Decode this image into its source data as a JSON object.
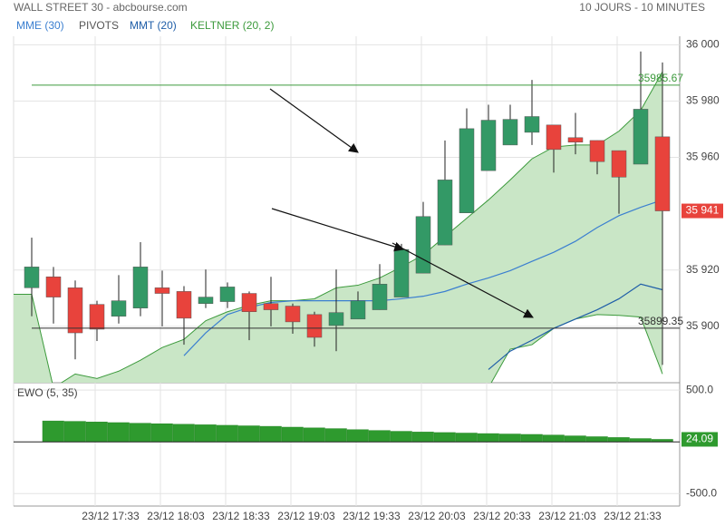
{
  "header": {
    "title": "WALL STREET 30 - abcbourse.com",
    "period": "10 JOURS - 10 MINUTES"
  },
  "chart_data": [
    {
      "type": "candlestick",
      "xlim": [
        -0.833,
        29.792
      ],
      "ylim": [
        35880,
        36003
      ],
      "yticks": [
        {
          "value": 36000,
          "label": "36 000"
        },
        {
          "value": 35980,
          "label": "35 980"
        },
        {
          "value": 35960,
          "label": "35 960"
        },
        {
          "value": 35920,
          "label": "35 920"
        },
        {
          "value": 35900,
          "label": "35 900"
        }
      ],
      "grid": true,
      "up_color": "#339966",
      "down_color": "#e8433c",
      "open": [
        35913.7,
        35917.6,
        35913.7,
        35907.8,
        35903.6,
        35906.5,
        35913.7,
        35912.4,
        35908.1,
        35908.8,
        35911.7,
        35908.1,
        35907.2,
        35904.2,
        35900.3,
        35902.6,
        35905.9,
        35910.4,
        35918.9,
        35928.9,
        35940.3,
        35955.3,
        35964.4,
        35968.9,
        35971.5,
        35967,
        35966,
        35962.4,
        35957.6,
        35967.3
      ],
      "high": [
        35931.5,
        35921.1,
        35916.3,
        35909.1,
        35918.2,
        35929.9,
        35919.8,
        35914.3,
        35920.2,
        35915.6,
        35912.4,
        35917.6,
        35908.1,
        35905.2,
        35920.2,
        35912.4,
        35922.1,
        35929.3,
        35944.2,
        35966,
        35977.4,
        35978.7,
        35978.7,
        35987.5,
        35971.5,
        35975.8,
        35966,
        35962.4,
        35997.6,
        35993.7
      ],
      "low": [
        35903.6,
        35901,
        35888.3,
        35894.8,
        35901,
        35903.6,
        35900,
        35893.5,
        35906.5,
        35906.5,
        35895.1,
        35900,
        35897.4,
        35892.8,
        35891.2,
        35902.6,
        35905.9,
        35910.4,
        35918.9,
        35928.9,
        35940.3,
        35955.3,
        35964.4,
        35964.4,
        35954.6,
        35961.1,
        35954,
        35940,
        35957.6,
        35886.3
      ],
      "close": [
        35921.1,
        35910.4,
        35897.7,
        35899,
        35909.1,
        35921.1,
        35911.7,
        35902.9,
        35910.4,
        35914,
        35905.2,
        35905.9,
        35901.6,
        35896.1,
        35904.9,
        35909.1,
        35915,
        35927.3,
        35939,
        35952,
        35970.2,
        35973.2,
        35973.5,
        35974.5,
        35962.8,
        35965.4,
        35958.5,
        35953,
        35977.1,
        35941
      ],
      "last_price": {
        "value": 35941,
        "label": "35 941",
        "color": "#e8433c"
      },
      "overlays": [
        {
          "name": "MME (30)",
          "type": "line",
          "color": "#3b7fd0",
          "values": [
            null,
            null,
            null,
            null,
            null,
            null,
            null,
            35889.6,
            35897.7,
            35904.2,
            35906.8,
            35908.5,
            35909.1,
            35909.1,
            35909.1,
            35909.1,
            35909.1,
            35909.8,
            35910.7,
            35912.4,
            35915,
            35917.2,
            35919.8,
            35923.1,
            35926.3,
            35930.2,
            35935.1,
            35939.3,
            35942.3,
            35944.9
          ]
        },
        {
          "name": "PIVOTS",
          "type": "levels",
          "color": "#555555",
          "levels": [
            35985.67,
            35899.35
          ],
          "level_colors": [
            "#3c9a3c",
            "#333333"
          ]
        },
        {
          "name": "MMT (20)",
          "type": "line",
          "color": "#1f5ea8",
          "values": [
            null,
            null,
            null,
            null,
            null,
            null,
            null,
            null,
            null,
            null,
            null,
            null,
            null,
            null,
            null,
            null,
            null,
            null,
            null,
            null,
            null,
            35884.7,
            35891.2,
            35895.1,
            35899.3,
            35902.6,
            35905.9,
            35909.8,
            35915,
            35913
          ]
        },
        {
          "name": "KELTNER (20, 2)",
          "type": "band",
          "color": "#3c9a3c",
          "fill": "#c9e6c6",
          "upper": [
            35911.4,
            35878.2,
            35883.1,
            35881.5,
            35884.1,
            35888,
            35892.5,
            35895.4,
            35902,
            35905.2,
            35907.5,
            35909.1,
            35909.1,
            35909.8,
            35913.7,
            35914.6,
            35917.2,
            35921.1,
            35925.4,
            35931.9,
            35938.4,
            35944.9,
            35952,
            35959.5,
            35963.7,
            35964.4,
            35964.4,
            35969.3,
            35976.7,
            35990.4
          ],
          "lower": [
            null,
            null,
            null,
            null,
            null,
            null,
            null,
            null,
            null,
            null,
            null,
            null,
            null,
            null,
            null,
            null,
            null,
            null,
            null,
            null,
            null,
            35878.2,
            35891.9,
            35893.5,
            35899.3,
            35902.6,
            35904.2,
            35903.9,
            35903.3,
            35883.1
          ]
        }
      ]
    },
    {
      "type": "bar",
      "title": "EWO (5, 35)",
      "color": "#2e9a2e",
      "xlim": [
        -0.833,
        29.792
      ],
      "ylim": [
        -620,
        545
      ],
      "yticks": [
        {
          "value": 500,
          "label": "500.0"
        },
        {
          "value": -500,
          "label": "-500.0"
        }
      ],
      "xticks": [
        {
          "value": 2.917,
          "label": "23/12 17:33"
        },
        {
          "value": 5.917,
          "label": "23/12 18:03"
        },
        {
          "value": 8.917,
          "label": "23/12 18:33"
        },
        {
          "value": 11.917,
          "label": "23/12 19:03"
        },
        {
          "value": 14.917,
          "label": "23/12 19:33"
        },
        {
          "value": 17.917,
          "label": "23/12 20:03"
        },
        {
          "value": 20.917,
          "label": "23/12 20:33"
        },
        {
          "value": 23.917,
          "label": "23/12 21:03"
        },
        {
          "value": 26.917,
          "label": "23/12 21:33"
        }
      ],
      "values": [
        null,
        202,
        198,
        192,
        186,
        180,
        175,
        170,
        165,
        160,
        155,
        150,
        142,
        135,
        128,
        118,
        110,
        102,
        95,
        90,
        85,
        80,
        76,
        72,
        66,
        58,
        50,
        42,
        32,
        24.09
      ]
    }
  ]
}
